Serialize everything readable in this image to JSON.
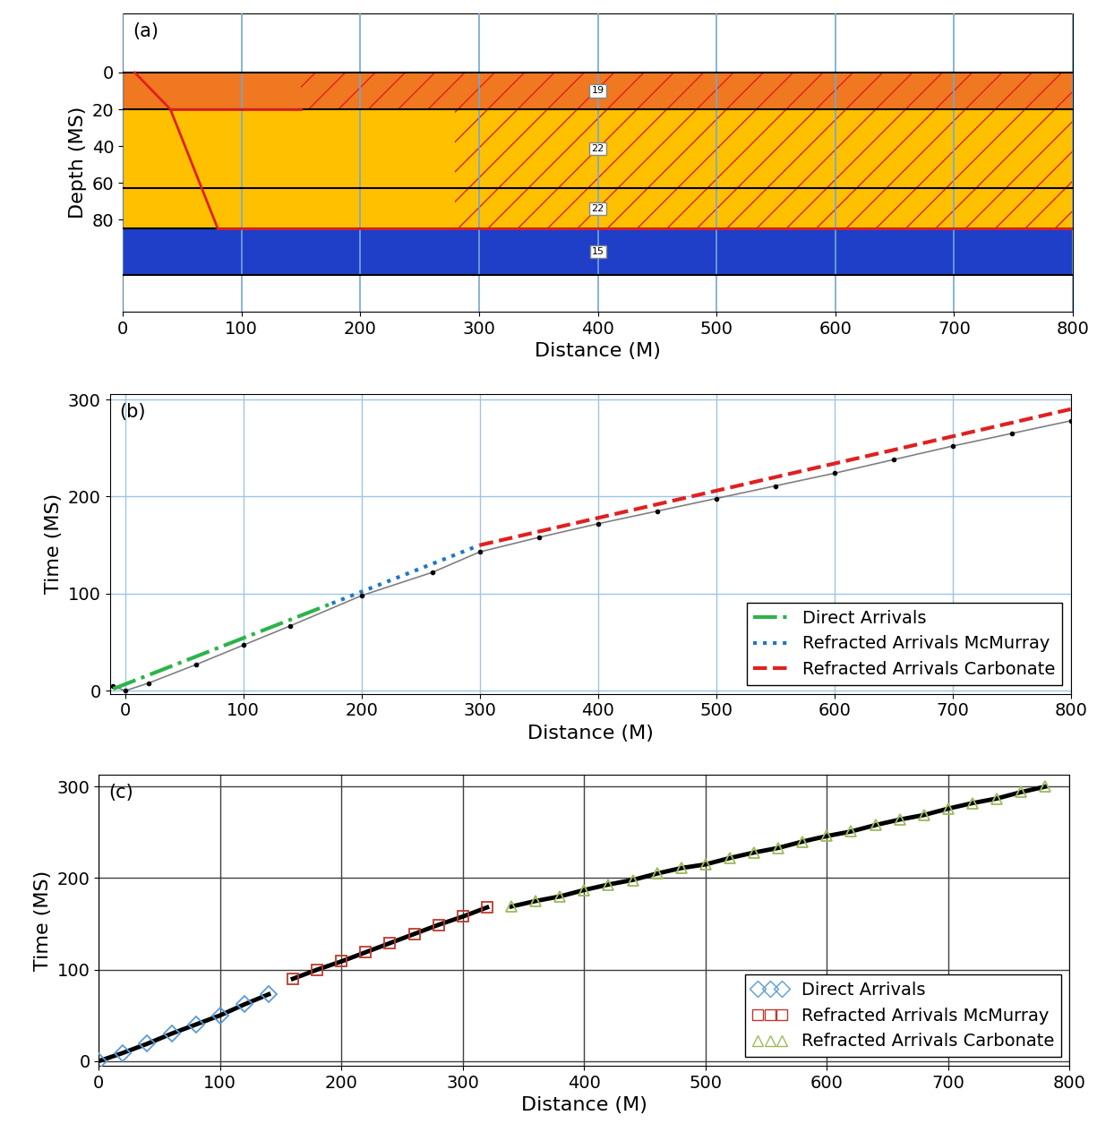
{
  "chart_data": [
    {
      "type": "layers",
      "title": "(a)",
      "x_label": "Distance (M)",
      "y_label": "Depth (MS)",
      "xlim": [
        0,
        800
      ],
      "ylim": [
        130,
        -32
      ],
      "xticks": [
        0,
        100,
        200,
        300,
        400,
        500,
        600,
        700,
        800
      ],
      "yticks": [
        0,
        20,
        40,
        60,
        80
      ],
      "grid": true,
      "layers": [
        {
          "top": 0,
          "bottom": 20,
          "color": "#f07820",
          "label": "19",
          "rays_from": 150
        },
        {
          "top": 20,
          "bottom": 63,
          "color": "#ffc000",
          "label": "22",
          "rays_from": 280
        },
        {
          "top": 63,
          "bottom": 85,
          "color": "#ffc000",
          "label": "22",
          "rays_from": 280
        },
        {
          "top": 85,
          "bottom": 110,
          "color": "#1f3fc8",
          "label": "15",
          "rays_from": null
        }
      ],
      "rays": [
        {
          "x": [
            10,
            40,
            80
          ],
          "depth": [
            0,
            20,
            85
          ],
          "color": "#e02020"
        },
        {
          "x": [
            40,
            150
          ],
          "depth": [
            20,
            20
          ],
          "color": "#e02020"
        },
        {
          "x": [
            80,
            800
          ],
          "depth": [
            85,
            85
          ],
          "color": "#e02020"
        }
      ]
    },
    {
      "type": "line",
      "title": "(b)",
      "x_label": "Distance (M)",
      "y_label": "Time (MS)",
      "xlim": [
        -13,
        800
      ],
      "ylim": [
        -3,
        306
      ],
      "xticks": [
        0,
        100,
        200,
        300,
        400,
        500,
        600,
        700,
        800
      ],
      "yticks": [
        0,
        100,
        200,
        300
      ],
      "grid": true,
      "legend": "lower right",
      "series": [
        {
          "color": "#808080",
          "marker": "circle",
          "line_style": "solid",
          "x": [
            -10,
            0,
            20,
            60,
            100,
            140,
            200,
            260,
            300,
            350,
            400,
            450,
            500,
            550,
            600,
            650,
            700,
            750,
            800
          ],
          "values": [
            5,
            0,
            8,
            27,
            47,
            67,
            98,
            122,
            143,
            158,
            172,
            185,
            198,
            211,
            224,
            238,
            252,
            265,
            278
          ]
        },
        {
          "name": "Direct Arrivals",
          "color": "#2db34a",
          "line_style": "dashdot",
          "x": [
            -10,
            175
          ],
          "values": [
            2,
            90
          ]
        },
        {
          "name": "Refracted Arrivals McMurray",
          "color": "#1f77c8",
          "line_style": "dotted",
          "x": [
            175,
            300
          ],
          "values": [
            90,
            150
          ]
        },
        {
          "name": "Refracted Arrivals Carbonate",
          "color": "#e02020",
          "line_style": "dashed",
          "x": [
            300,
            800
          ],
          "values": [
            150,
            290
          ]
        }
      ]
    },
    {
      "type": "scatter",
      "title": "(c)",
      "x_label": "Distance (M)",
      "y_label": "Time (MS)",
      "xlim": [
        0,
        800
      ],
      "ylim": [
        -5,
        313
      ],
      "xticks": [
        0,
        100,
        200,
        300,
        400,
        500,
        600,
        700,
        800
      ],
      "yticks": [
        0,
        100,
        200,
        300
      ],
      "grid": true,
      "legend": "lower right",
      "series": [
        {
          "name": "Direct Arrivals",
          "color": "#5b9bd5",
          "marker": "diamond",
          "line_style": "solid",
          "x": [
            0,
            20,
            40,
            60,
            80,
            100,
            120,
            140
          ],
          "values": [
            0,
            9,
            19,
            30,
            40,
            50,
            62,
            73
          ]
        },
        {
          "name": "Refracted Arrivals McMurray",
          "color": "#c0392b",
          "marker": "square",
          "line_style": "solid",
          "x": [
            160,
            180,
            200,
            220,
            240,
            260,
            280,
            300,
            320
          ],
          "values": [
            90,
            100,
            109,
            119,
            129,
            139,
            149,
            158,
            168
          ]
        },
        {
          "name": "Refracted Arrivals Carbonate",
          "color": "#9bbb59",
          "marker": "triangle",
          "line_style": "solid",
          "x": [
            340,
            360,
            380,
            400,
            420,
            440,
            460,
            480,
            500,
            520,
            540,
            560,
            580,
            600,
            620,
            640,
            660,
            680,
            700,
            720,
            740,
            760,
            780
          ],
          "values": [
            169,
            175,
            180,
            187,
            193,
            198,
            205,
            211,
            215,
            222,
            228,
            233,
            240,
            246,
            251,
            258,
            264,
            269,
            276,
            282,
            287,
            294,
            300
          ]
        }
      ]
    }
  ]
}
